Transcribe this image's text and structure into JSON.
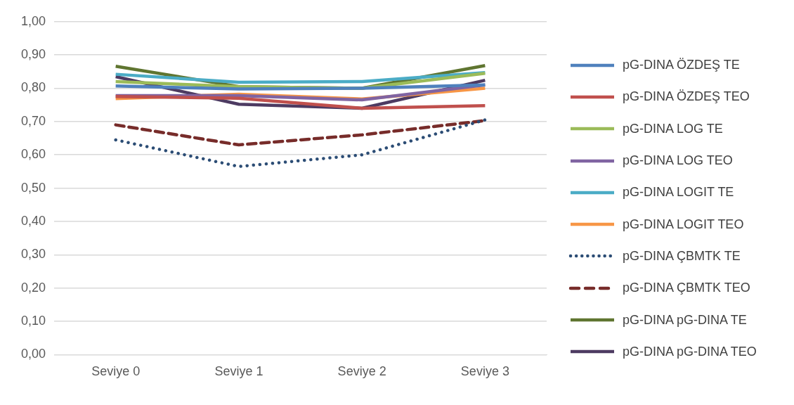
{
  "chart_data": {
    "type": "line",
    "categories": [
      "Seviye 0",
      "Seviye 1",
      "Seviye 2",
      "Seviye 3"
    ],
    "ylim": [
      0,
      1
    ],
    "yticks": [
      {
        "value": 0,
        "label": "0,00"
      },
      {
        "value": 0.1,
        "label": "0,10"
      },
      {
        "value": 0.2,
        "label": "0,20"
      },
      {
        "value": 0.3,
        "label": "0,30"
      },
      {
        "value": 0.4,
        "label": "0,40"
      },
      {
        "value": 0.5,
        "label": "0,50"
      },
      {
        "value": 0.6,
        "label": "0,60"
      },
      {
        "value": 0.7,
        "label": "0,70"
      },
      {
        "value": 0.8,
        "label": "0,80"
      },
      {
        "value": 0.9,
        "label": "0,90"
      },
      {
        "value": 1,
        "label": "1,00"
      }
    ],
    "grid": "y",
    "legend": "right",
    "marker": "none",
    "series": [
      {
        "name": "pG-DINA ÖZDEŞ TE",
        "color": "#4f81bd",
        "line_style": "solid",
        "values": [
          0.807,
          0.798,
          0.8,
          0.81
        ]
      },
      {
        "name": "pG-DINA ÖZDEŞ TEO",
        "color": "#c0504d",
        "line_style": "solid",
        "values": [
          0.775,
          0.77,
          0.74,
          0.748
        ]
      },
      {
        "name": "pG-DINA LOG TE",
        "color": "#9bbb59",
        "line_style": "solid",
        "values": [
          0.82,
          0.805,
          0.8,
          0.845
        ]
      },
      {
        "name": "pG-DINA LOG TEO",
        "color": "#8064a2",
        "line_style": "solid",
        "values": [
          0.778,
          0.778,
          0.765,
          0.81
        ]
      },
      {
        "name": "pG-DINA LOGIT TE",
        "color": "#4bacc6",
        "line_style": "solid",
        "values": [
          0.842,
          0.818,
          0.82,
          0.847
        ]
      },
      {
        "name": "pG-DINA LOGIT TEO",
        "color": "#f79646",
        "line_style": "solid",
        "values": [
          0.769,
          0.782,
          0.768,
          0.8
        ]
      },
      {
        "name": "pG-DINA ÇBMTK TE",
        "color": "#2c4d75",
        "line_style": "dotted",
        "values": [
          0.645,
          0.565,
          0.6,
          0.705
        ]
      },
      {
        "name": "pG-DINA ÇBMTK TEO",
        "color": "#772c2a",
        "line_style": "dashed",
        "values": [
          0.69,
          0.63,
          0.66,
          0.703
        ]
      },
      {
        "name": "pG-DINA pG-DINA TE",
        "color": "#5f7530",
        "line_style": "solid",
        "values": [
          0.866,
          0.805,
          0.8,
          0.868
        ]
      },
      {
        "name": "pG-DINA pG-DINA TEO",
        "color": "#4d3b62",
        "line_style": "solid",
        "values": [
          0.835,
          0.752,
          0.74,
          0.824
        ]
      }
    ]
  }
}
